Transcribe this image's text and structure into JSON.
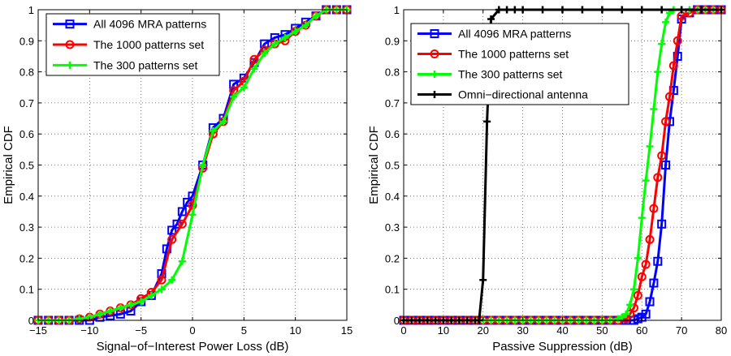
{
  "chart_data": [
    {
      "type": "line",
      "title": "",
      "xlabel": "Signal−of−Interest Power Loss (dB)",
      "ylabel": "Empirical CDF",
      "xlim": [
        -15,
        15
      ],
      "ylim": [
        0,
        1
      ],
      "xticks": [
        -15,
        -10,
        -5,
        0,
        5,
        10,
        15
      ],
      "xtick_labels": [
        "−15",
        "−10",
        "−5",
        "0",
        "5",
        "10",
        "15"
      ],
      "yticks": [
        0,
        0.1,
        0.2,
        0.3,
        0.4,
        0.5,
        0.6,
        0.7,
        0.8,
        0.9,
        1
      ],
      "ytick_labels": [
        "0",
        "0.1",
        "0.2",
        "0.3",
        "0.4",
        "0.5",
        "0.6",
        "0.7",
        "0.8",
        "0.9",
        "1"
      ],
      "grid": true,
      "legend_position": "top-left",
      "series": [
        {
          "name": "All 4096 MRA patterns",
          "color": "#0000ff",
          "marker": "square",
          "x": [
            -15,
            -14,
            -13,
            -12,
            -11,
            -10,
            -9,
            -8,
            -7,
            -6,
            -5,
            -4,
            -3,
            -2.5,
            -2,
            -1.5,
            -1,
            -0.5,
            0,
            1,
            2,
            3,
            4,
            5,
            6,
            7,
            8,
            9,
            10,
            11,
            12,
            13,
            14,
            15
          ],
          "y": [
            0,
            0,
            0,
            0,
            0,
            0,
            0.01,
            0.015,
            0.02,
            0.03,
            0.06,
            0.08,
            0.15,
            0.23,
            0.29,
            0.31,
            0.35,
            0.38,
            0.4,
            0.5,
            0.62,
            0.65,
            0.76,
            0.78,
            0.83,
            0.89,
            0.91,
            0.92,
            0.94,
            0.96,
            0.98,
            1,
            1,
            1
          ]
        },
        {
          "name": "The 1000 patterns set",
          "color": "#ff0000",
          "marker": "circle",
          "x": [
            -15,
            -14,
            -13,
            -12,
            -11,
            -10,
            -9,
            -8,
            -7,
            -6,
            -5,
            -4,
            -3,
            -2,
            -1,
            0,
            1,
            2,
            3,
            4,
            5,
            6,
            7,
            8,
            9,
            10,
            11,
            12,
            13,
            14,
            15
          ],
          "y": [
            0,
            0,
            0,
            0,
            0.005,
            0.01,
            0.02,
            0.03,
            0.04,
            0.05,
            0.07,
            0.09,
            0.13,
            0.26,
            0.31,
            0.37,
            0.49,
            0.6,
            0.64,
            0.74,
            0.77,
            0.84,
            0.87,
            0.89,
            0.9,
            0.93,
            0.95,
            0.98,
            1,
            1,
            1
          ]
        },
        {
          "name": "The 300 patterns set",
          "color": "#00ff00",
          "marker": "plus",
          "x": [
            -15,
            -14,
            -13,
            -12,
            -11,
            -10,
            -9,
            -8,
            -7,
            -6,
            -5,
            -4,
            -3,
            -2,
            -1,
            0,
            1,
            2,
            3,
            4,
            5,
            6,
            7,
            8,
            9,
            10,
            11,
            12,
            13,
            14,
            15
          ],
          "y": [
            0,
            0,
            0,
            0,
            0.005,
            0.01,
            0.02,
            0.03,
            0.04,
            0.05,
            0.06,
            0.08,
            0.1,
            0.13,
            0.19,
            0.34,
            0.5,
            0.61,
            0.64,
            0.72,
            0.75,
            0.81,
            0.86,
            0.89,
            0.91,
            0.93,
            0.95,
            0.98,
            1,
            1,
            1
          ]
        }
      ]
    },
    {
      "type": "line",
      "title": "",
      "xlabel": "Passive Suppression (dB)",
      "ylabel": "Empirical CDF",
      "xlim": [
        0,
        80
      ],
      "ylim": [
        0,
        1
      ],
      "xticks": [
        0,
        10,
        20,
        30,
        40,
        50,
        60,
        70,
        80
      ],
      "xtick_labels": [
        "0",
        "10",
        "20",
        "30",
        "40",
        "50",
        "60",
        "70",
        "80"
      ],
      "yticks": [
        0,
        0.1,
        0.2,
        0.3,
        0.4,
        0.5,
        0.6,
        0.7,
        0.8,
        0.9,
        1
      ],
      "ytick_labels": [
        "0",
        "0.1",
        "0.2",
        "0.3",
        "0.4",
        "0.5",
        "0.6",
        "0.7",
        "0.8",
        "0.9",
        "1"
      ],
      "grid": true,
      "legend_position": "top-left",
      "series": [
        {
          "name": "All 4096 MRA patterns",
          "color": "#0000ff",
          "marker": "square",
          "x": [
            0,
            2,
            4,
            6,
            8,
            10,
            12,
            14,
            16,
            18,
            20,
            22,
            24,
            26,
            28,
            30,
            32,
            34,
            36,
            38,
            40,
            42,
            44,
            46,
            48,
            50,
            52,
            54,
            56,
            58,
            59,
            60,
            61,
            62,
            63,
            64,
            65,
            66,
            67,
            68,
            69,
            70,
            72,
            74,
            76,
            78,
            80
          ],
          "y": [
            0,
            0,
            0,
            0,
            0,
            0,
            0,
            0,
            0,
            0,
            0,
            0,
            0,
            0,
            0,
            0,
            0,
            0,
            0,
            0,
            0,
            0,
            0,
            0,
            0,
            0,
            0,
            0,
            0,
            0,
            0.005,
            0.01,
            0.02,
            0.06,
            0.12,
            0.19,
            0.31,
            0.5,
            0.64,
            0.74,
            0.85,
            0.97,
            0.99,
            1,
            1,
            1,
            1
          ]
        },
        {
          "name": "The 1000 patterns set",
          "color": "#ff0000",
          "marker": "circle",
          "x": [
            0,
            2,
            4,
            6,
            8,
            10,
            12,
            14,
            16,
            18,
            20,
            22,
            24,
            26,
            28,
            30,
            32,
            34,
            36,
            38,
            40,
            42,
            44,
            46,
            48,
            50,
            52,
            54,
            56,
            57,
            58,
            59,
            60,
            61,
            62,
            63,
            64,
            65,
            66,
            67,
            68,
            69,
            70,
            72,
            74,
            76,
            78,
            80
          ],
          "y": [
            0,
            0,
            0,
            0,
            0,
            0,
            0,
            0,
            0,
            0,
            0,
            0,
            0,
            0,
            0,
            0,
            0,
            0,
            0,
            0,
            0,
            0,
            0,
            0,
            0,
            0,
            0,
            0,
            0.005,
            0.02,
            0.04,
            0.08,
            0.14,
            0.18,
            0.26,
            0.36,
            0.46,
            0.53,
            0.64,
            0.72,
            0.82,
            0.9,
            0.98,
            0.99,
            1,
            1,
            1,
            1
          ]
        },
        {
          "name": "The 300 patterns set",
          "color": "#00ff00",
          "marker": "plus",
          "x": [
            0,
            2,
            4,
            6,
            8,
            10,
            12,
            14,
            16,
            18,
            20,
            22,
            24,
            26,
            28,
            30,
            32,
            34,
            36,
            38,
            40,
            42,
            44,
            46,
            48,
            50,
            52,
            54,
            55,
            56,
            57,
            58,
            59,
            60,
            61,
            62,
            63,
            64,
            65,
            66,
            67,
            68,
            70,
            72,
            74,
            76,
            78,
            80
          ],
          "y": [
            0,
            0,
            0,
            0,
            0,
            0,
            0,
            0,
            0,
            0,
            0,
            0,
            0,
            0,
            0,
            0,
            0,
            0,
            0,
            0,
            0,
            0,
            0,
            0,
            0,
            0,
            0,
            0.005,
            0.01,
            0.02,
            0.05,
            0.1,
            0.2,
            0.33,
            0.45,
            0.56,
            0.68,
            0.8,
            0.89,
            0.96,
            0.99,
            1,
            1,
            1,
            1,
            1,
            1,
            1
          ]
        },
        {
          "name": "Omni−directional antenna",
          "color": "#000000",
          "marker": "plus",
          "x": [
            0,
            2,
            4,
            6,
            8,
            10,
            12,
            14,
            16,
            18,
            19,
            20,
            21,
            22,
            24,
            26,
            28,
            30,
            35,
            40,
            45,
            50,
            55,
            60,
            65,
            70,
            75,
            80
          ],
          "y": [
            0,
            0,
            0,
            0,
            0,
            0,
            0,
            0,
            0,
            0,
            0,
            0.13,
            0.64,
            0.97,
            1,
            1,
            1,
            1,
            1,
            1,
            1,
            1,
            1,
            1,
            1,
            1,
            1,
            1
          ]
        }
      ]
    }
  ]
}
